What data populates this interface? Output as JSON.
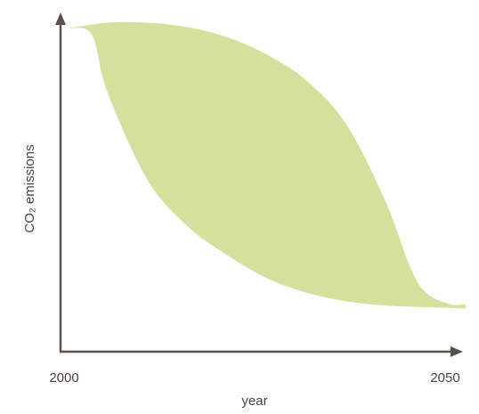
{
  "chart_data": {
    "type": "area",
    "title": "",
    "xlabel": "year",
    "ylabel": "CO₂ emissions",
    "x_ticks": [
      "2000",
      "2050"
    ],
    "xlim": [
      2000,
      2050
    ],
    "ylim": [
      0,
      100
    ],
    "grid": false,
    "legend": "none",
    "fill_color": "#d4e09b",
    "axis_color": "#5a524d",
    "series": [
      {
        "values_upper": [
          {
            "x": 2000,
            "y": 100
          },
          {
            "x": 2005,
            "y": 102
          },
          {
            "x": 2010,
            "y": 102
          },
          {
            "x": 2015,
            "y": 100.5
          },
          {
            "x": 2020,
            "y": 97
          },
          {
            "x": 2025,
            "y": 91
          },
          {
            "x": 2030,
            "y": 82
          },
          {
            "x": 2035,
            "y": 67
          },
          {
            "x": 2040,
            "y": 40
          },
          {
            "x": 2043,
            "y": 18
          },
          {
            "x": 2045,
            "y": 9
          },
          {
            "x": 2048,
            "y": 5
          },
          {
            "x": 2050,
            "y": 5
          }
        ],
        "values_lower": [
          {
            "x": 2000,
            "y": 100
          },
          {
            "x": 2003,
            "y": 98
          },
          {
            "x": 2005,
            "y": 78
          },
          {
            "x": 2010,
            "y": 48
          },
          {
            "x": 2015,
            "y": 32
          },
          {
            "x": 2020,
            "y": 22
          },
          {
            "x": 2025,
            "y": 14
          },
          {
            "x": 2030,
            "y": 9
          },
          {
            "x": 2035,
            "y": 6
          },
          {
            "x": 2040,
            "y": 4.5
          },
          {
            "x": 2045,
            "y": 4
          },
          {
            "x": 2050,
            "y": 3.5
          }
        ]
      }
    ]
  }
}
